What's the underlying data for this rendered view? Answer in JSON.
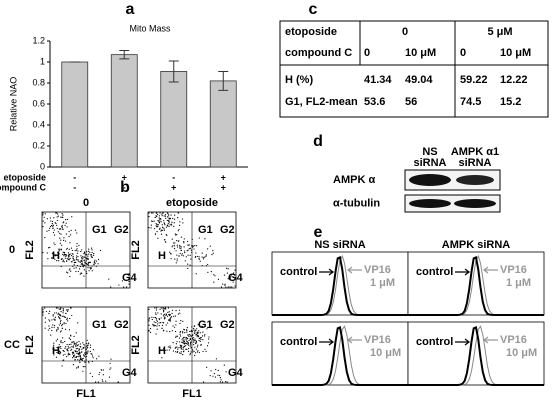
{
  "panel_labels": [
    "a",
    "b",
    "c",
    "d",
    "e"
  ],
  "chart_data": {
    "type": "bar",
    "title": "Mito Mass",
    "y_label": "Relative NAO",
    "values": [
      1.0,
      1.07,
      0.91,
      0.82
    ],
    "errors": [
      0,
      0.04,
      0.1,
      0.09
    ],
    "color": "#c8c8c8",
    "ylim": [
      0,
      1.2
    ],
    "yticks": [
      0,
      0.2,
      0.4,
      0.6,
      0.8,
      1,
      1.2
    ],
    "conditions": [
      {
        "name": "etoposide",
        "values": [
          "-",
          "+",
          "-",
          "+"
        ]
      },
      {
        "name": "compound C",
        "values": [
          "-",
          "-",
          "+",
          "+"
        ]
      }
    ]
  },
  "flow": {
    "col_labels": [
      "0",
      "etoposide"
    ],
    "row_labels": [
      "0",
      "CC"
    ],
    "quadrants": [
      "G1",
      "G2",
      "H",
      "G4"
    ],
    "x_label": "FL1",
    "y_label": "FL2"
  },
  "table": {
    "header": [
      "etoposide",
      "0",
      "5 μM"
    ],
    "rows": [
      [
        "compound C",
        "0",
        "10 μM",
        "0",
        "10 μM"
      ],
      [
        "H (%)",
        "41.34",
        "49.04",
        "59.22",
        "12.22"
      ],
      [
        "G1, FL2-mean",
        "53.6",
        "56",
        "74.5",
        "15.2"
      ]
    ]
  },
  "blot": {
    "lanes": [
      [
        "NS",
        "siRNA"
      ],
      [
        "AMPK α1",
        "siRNA"
      ]
    ],
    "bands": [
      "AMPK α",
      "α-tubulin"
    ]
  },
  "histograms": {
    "panels": [
      {
        "title": "NS siRNA",
        "rows": [
          {
            "control": "control",
            "treatment": [
              "VP16",
              "1 μM"
            ]
          },
          {
            "control": "control",
            "treatment": [
              "VP16",
              "10 μM"
            ]
          }
        ]
      },
      {
        "title": "AMPK siRNA",
        "rows": [
          {
            "control": "control",
            "treatment": [
              "VP16",
              "1 μM"
            ]
          },
          {
            "control": "control",
            "treatment": [
              "VP16",
              "10 μM"
            ]
          }
        ]
      }
    ]
  }
}
